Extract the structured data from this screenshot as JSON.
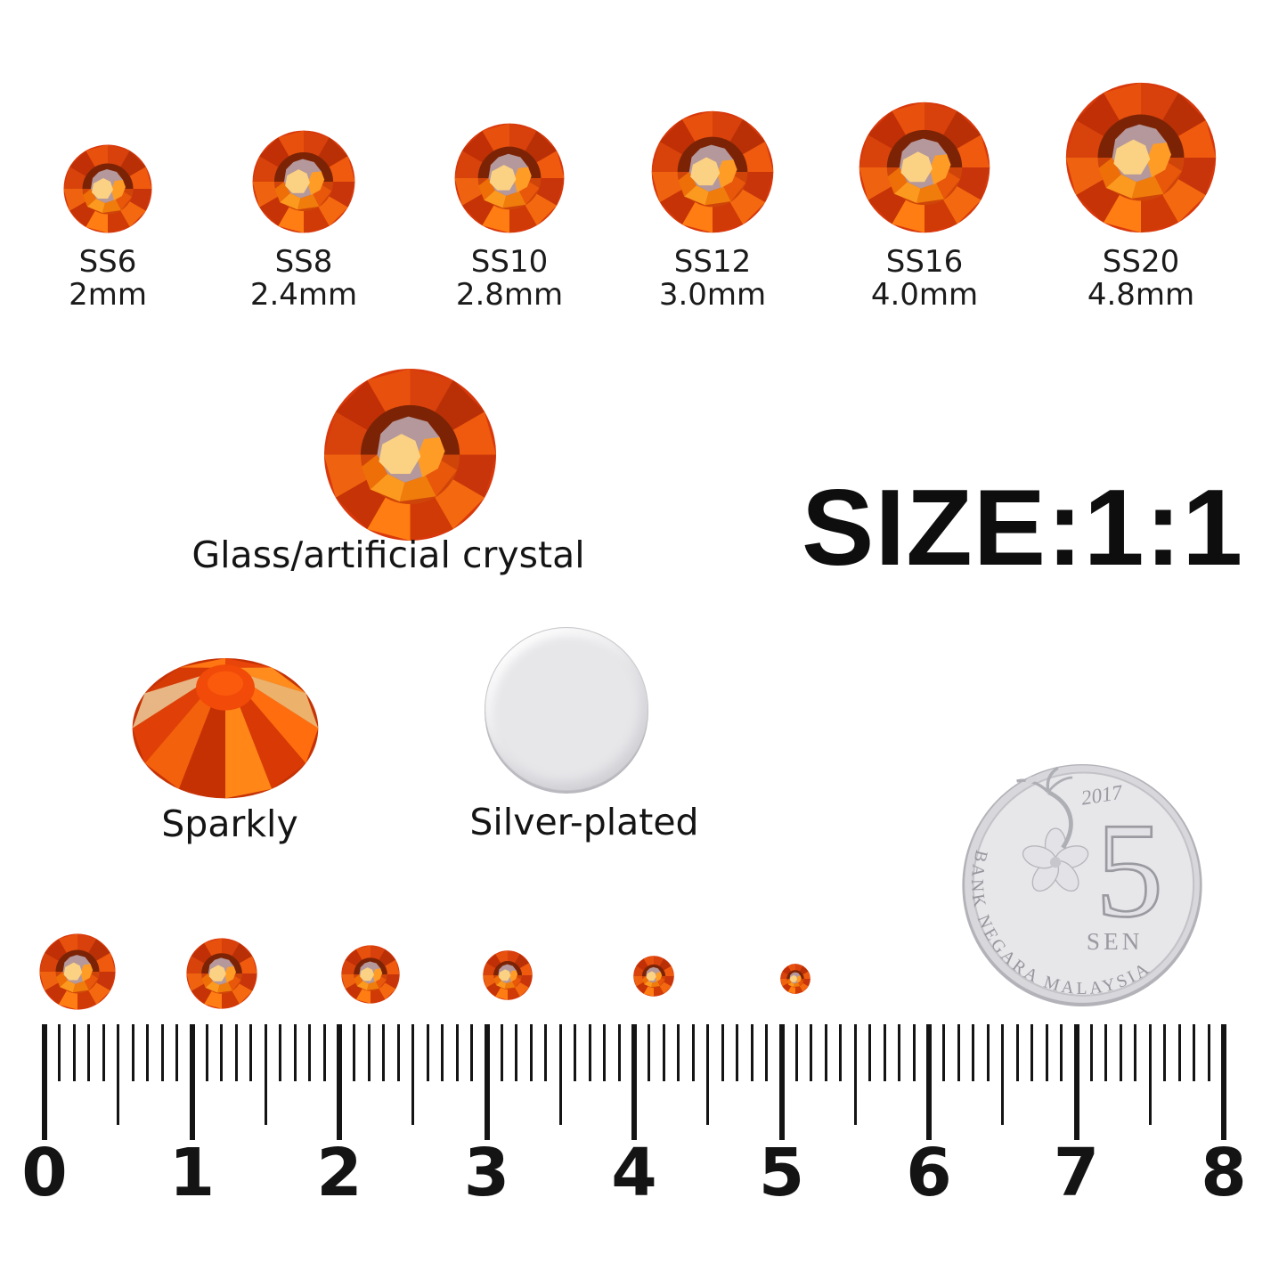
{
  "top_row": {
    "items": [
      {
        "size_code": "SS6",
        "diameter": "2mm"
      },
      {
        "size_code": "SS8",
        "diameter": "2.4mm"
      },
      {
        "size_code": "SS10",
        "diameter": "2.8mm"
      },
      {
        "size_code": "SS12",
        "diameter": "3.0mm"
      },
      {
        "size_code": "SS16",
        "diameter": "4.0mm"
      },
      {
        "size_code": "SS20",
        "diameter": "4.8mm"
      }
    ]
  },
  "middle": {
    "material_label": "Glass/artificial crystal",
    "scale_label": "SIZE:1:1"
  },
  "features": {
    "front_label": "Sparkly",
    "back_label": "Silver-plated"
  },
  "coin": {
    "year": "2017",
    "denomination": "5",
    "unit": "SEN",
    "issuer": "BANK NEGARA MALAYSIA"
  },
  "ruler": {
    "numbers": [
      "0",
      "1",
      "2",
      "3",
      "4",
      "5",
      "6",
      "7",
      "8"
    ]
  },
  "colors": {
    "crystal_base": "#d8380c",
    "crystal_dark_ring": "#7c2306",
    "crystal_table_mauve": "#b5989b",
    "crystal_highlight": "#fbd283",
    "silver": "#e7e7ea",
    "text": "#1b1b1b",
    "face_facets": [
      "#d8410c",
      "#b93007",
      "#ef5a0e",
      "#c8350a",
      "#f4690f",
      "#d03a06",
      "#ff7d12",
      "#c63306",
      "#ef6310",
      "#d8430b",
      "#c02f05",
      "#e8500d"
    ],
    "face_inner": [
      "#cf4509",
      "#ee6e07",
      "#fb9a1f",
      "#f07c0b",
      "#e8570a",
      "#ff9c26"
    ],
    "side_facets": [
      "#ff6d0e",
      "#d93a05",
      "#ff8617",
      "#c63104",
      "#f4610c",
      "#e04008",
      "#e8b684",
      "#d63b06",
      "#ff7612",
      "#e8450a",
      "#ff8c1c",
      "#ecb16b"
    ]
  }
}
